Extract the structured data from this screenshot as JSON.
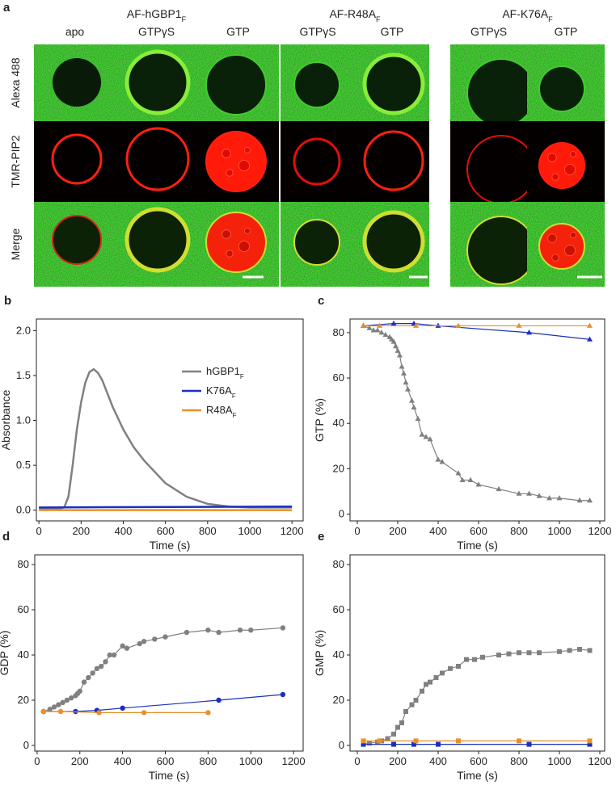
{
  "figure_a": {
    "panel": "a",
    "groups": [
      {
        "title": "AF-hGBP1",
        "sub": "F",
        "columns": [
          "apo",
          "GTPγS",
          "GTP"
        ]
      },
      {
        "title": "AF-R48A",
        "sub": "F",
        "columns": [
          "GTPγS",
          "GTP"
        ]
      },
      {
        "title": "AF-K76A",
        "sub": "F",
        "columns": [
          "GTPγS",
          "GTP"
        ]
      }
    ],
    "rows": [
      "Alexa 488",
      "TMR-PIP2",
      "Merge"
    ]
  },
  "chart_data": [
    {
      "type": "line",
      "panel": "b",
      "xlabel": "Time (s)",
      "ylabel": "Absorbance",
      "xlim": [
        -12,
        1253
      ],
      "xticks": [
        0,
        200,
        400,
        600,
        800,
        1000,
        1200
      ],
      "ylim": [
        -0.12,
        2.13
      ],
      "yticks": [
        {
          "value": 0,
          "label": "0.0"
        },
        {
          "value": 0.5,
          "label": "0.5"
        },
        {
          "value": 1,
          "label": "1.0"
        },
        {
          "value": 1.5,
          "label": "1.5"
        },
        {
          "value": 2,
          "label": "2.0"
        }
      ],
      "legend": "upper right",
      "series": [
        {
          "name": "hGBP1",
          "name_sub": "F",
          "color": "#808080",
          "x": [
            0,
            50,
            100,
            120,
            140,
            160,
            180,
            200,
            220,
            240,
            260,
            280,
            300,
            350,
            400,
            450,
            500,
            600,
            700,
            800,
            900,
            1000,
            1100,
            1200
          ],
          "values": [
            0.02,
            0.02,
            0.02,
            0.03,
            0.15,
            0.5,
            0.9,
            1.2,
            1.42,
            1.54,
            1.57,
            1.53,
            1.45,
            1.15,
            0.9,
            0.7,
            0.55,
            0.3,
            0.15,
            0.07,
            0.04,
            0.03,
            0.03,
            0.03
          ]
        },
        {
          "name": "K76A",
          "name_sub": "F",
          "color": "#1a2fc0",
          "x": [
            0,
            1200
          ],
          "values": [
            0.03,
            0.04
          ]
        },
        {
          "name": "R48A",
          "name_sub": "F",
          "color": "#e8902a",
          "x": [
            0,
            1200
          ],
          "values": [
            0,
            0
          ]
        }
      ]
    },
    {
      "type": "line",
      "panel": "c",
      "xlabel": "Time (s)",
      "ylabel": "GTP (%)",
      "xlim": [
        -36,
        1224
      ],
      "xticks": [
        0,
        200,
        400,
        600,
        800,
        1000,
        1200
      ],
      "ylim": [
        -3,
        86
      ],
      "yticks": [
        0,
        20,
        40,
        60,
        80
      ],
      "series": [
        {
          "color": "#808080",
          "marker": "triangle",
          "x": [
            30,
            60,
            80,
            100,
            120,
            140,
            160,
            170,
            180,
            190,
            200,
            210,
            220,
            230,
            240,
            250,
            270,
            280,
            300,
            320,
            340,
            360,
            400,
            420,
            500,
            520,
            560,
            600,
            700,
            800,
            850,
            900,
            950,
            1000,
            1100,
            1150
          ],
          "values": [
            83,
            82,
            81,
            81,
            80,
            79,
            78,
            77,
            76,
            74,
            72,
            70,
            65,
            62,
            58,
            55,
            50,
            47,
            42,
            35,
            34,
            33,
            24,
            23,
            18,
            15,
            15,
            13,
            11,
            9,
            9,
            8,
            7,
            7,
            6,
            6
          ]
        },
        {
          "color": "#1a2fc0",
          "marker": "triangle",
          "x": [
            30,
            180,
            280,
            400,
            850,
            1150
          ],
          "values": [
            83,
            84,
            84,
            83,
            80,
            77
          ]
        },
        {
          "color": "#e8902a",
          "marker": "triangle",
          "x": [
            30,
            110,
            290,
            500,
            800,
            1150
          ],
          "values": [
            83,
            83,
            83,
            83,
            83,
            83
          ]
        }
      ]
    },
    {
      "type": "line",
      "panel": "d",
      "xlabel": "Time (s)",
      "ylabel": "GDP (%)",
      "xlim": [
        -11,
        1245
      ],
      "xticks": [
        0,
        200,
        400,
        600,
        800,
        1000,
        1200
      ],
      "ylim": [
        -2.5,
        84.3
      ],
      "yticks": [
        0,
        20,
        40,
        60,
        80
      ],
      "series": [
        {
          "color": "#808080",
          "marker": "circle",
          "x": [
            30,
            60,
            80,
            100,
            120,
            140,
            160,
            180,
            190,
            200,
            220,
            240,
            260,
            280,
            300,
            320,
            340,
            360,
            400,
            420,
            480,
            500,
            550,
            600,
            700,
            800,
            850,
            950,
            1000,
            1150
          ],
          "values": [
            15,
            16,
            17,
            18,
            19,
            20,
            21,
            22,
            23,
            24,
            28,
            30,
            32,
            34,
            35,
            37,
            40,
            40,
            44,
            43,
            45,
            46,
            47,
            48,
            50,
            51,
            50,
            51,
            51,
            52
          ]
        },
        {
          "color": "#1a2fc0",
          "marker": "circle",
          "x": [
            30,
            180,
            280,
            400,
            850,
            1150
          ],
          "values": [
            15,
            15,
            15.5,
            16.5,
            20,
            22.5
          ]
        },
        {
          "color": "#e8902a",
          "marker": "circle",
          "x": [
            30,
            110,
            290,
            500,
            800
          ],
          "values": [
            15,
            15,
            14.5,
            14.5,
            14.5
          ]
        }
      ]
    },
    {
      "type": "line",
      "panel": "e",
      "xlabel": "Time (s)",
      "ylabel": "GMP (%)",
      "xlim": [
        -36,
        1224
      ],
      "xticks": [
        0,
        200,
        400,
        600,
        800,
        1000,
        1200
      ],
      "ylim": [
        -2.5,
        84.3
      ],
      "yticks": [
        0,
        20,
        40,
        60,
        80
      ],
      "series": [
        {
          "color": "#808080",
          "marker": "square",
          "x": [
            30,
            60,
            100,
            120,
            150,
            180,
            200,
            220,
            240,
            270,
            290,
            320,
            340,
            360,
            390,
            420,
            460,
            500,
            540,
            580,
            620,
            700,
            750,
            800,
            850,
            900,
            1000,
            1050,
            1100,
            1150
          ],
          "values": [
            1,
            1,
            1.5,
            2,
            3,
            5,
            8,
            10,
            15,
            18,
            20,
            24,
            27,
            28,
            30,
            32,
            34,
            35,
            38,
            38,
            39,
            40,
            40.5,
            41,
            41,
            41,
            41.5,
            42,
            42.5,
            42
          ]
        },
        {
          "color": "#1a2fc0",
          "marker": "square",
          "x": [
            30,
            180,
            280,
            400,
            850,
            1150
          ],
          "values": [
            0.5,
            0.5,
            0.5,
            0.5,
            0.5,
            0.5
          ]
        },
        {
          "color": "#e8902a",
          "marker": "square",
          "x": [
            30,
            110,
            290,
            500,
            800,
            1150
          ],
          "values": [
            2,
            2,
            2,
            2,
            2,
            2
          ]
        }
      ]
    }
  ]
}
